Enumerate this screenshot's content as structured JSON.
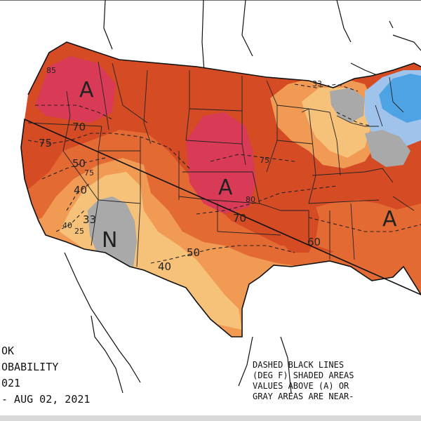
{
  "map": {
    "background_color": "#ffffff",
    "colors": {
      "ocean": "#ffffff",
      "above_light": "#f6c27a",
      "above_mid": "#f19a54",
      "above_strong": "#e46a34",
      "above_very": "#d44b24",
      "above_max": "#d93b57",
      "near_normal": "#a9a9a9",
      "below_light": "#9fc3ea",
      "below_strong": "#4da3e3"
    },
    "category_labels": {
      "northwest": "A",
      "central": "A",
      "southeast": "A",
      "southwest": "N"
    },
    "contour_labels": {
      "c85": "85",
      "c70_nw": "70",
      "c75_w": "75",
      "c50_w": "50",
      "c75_ut": "75",
      "c40_w": "40",
      "c33": "33",
      "c40_sw": "40",
      "c25": "25",
      "c50_sw": "50",
      "c75_c": "75",
      "c80": "80",
      "c70_c": "70",
      "c60_se": "60",
      "c40_tx": "40",
      "c33_ne": "33"
    }
  },
  "text": {
    "left_line1": "OK",
    "left_line2": "OBABILITY",
    "left_line3": "021",
    "left_line4": "- AUG 02, 2021",
    "right_line1": "DASHED BLACK LINES",
    "right_line2": "(DEG F) SHADED AREAS",
    "right_line3": "VALUES ABOVE (A) OR",
    "right_line4": "GRAY AREAS ARE NEAR-"
  }
}
